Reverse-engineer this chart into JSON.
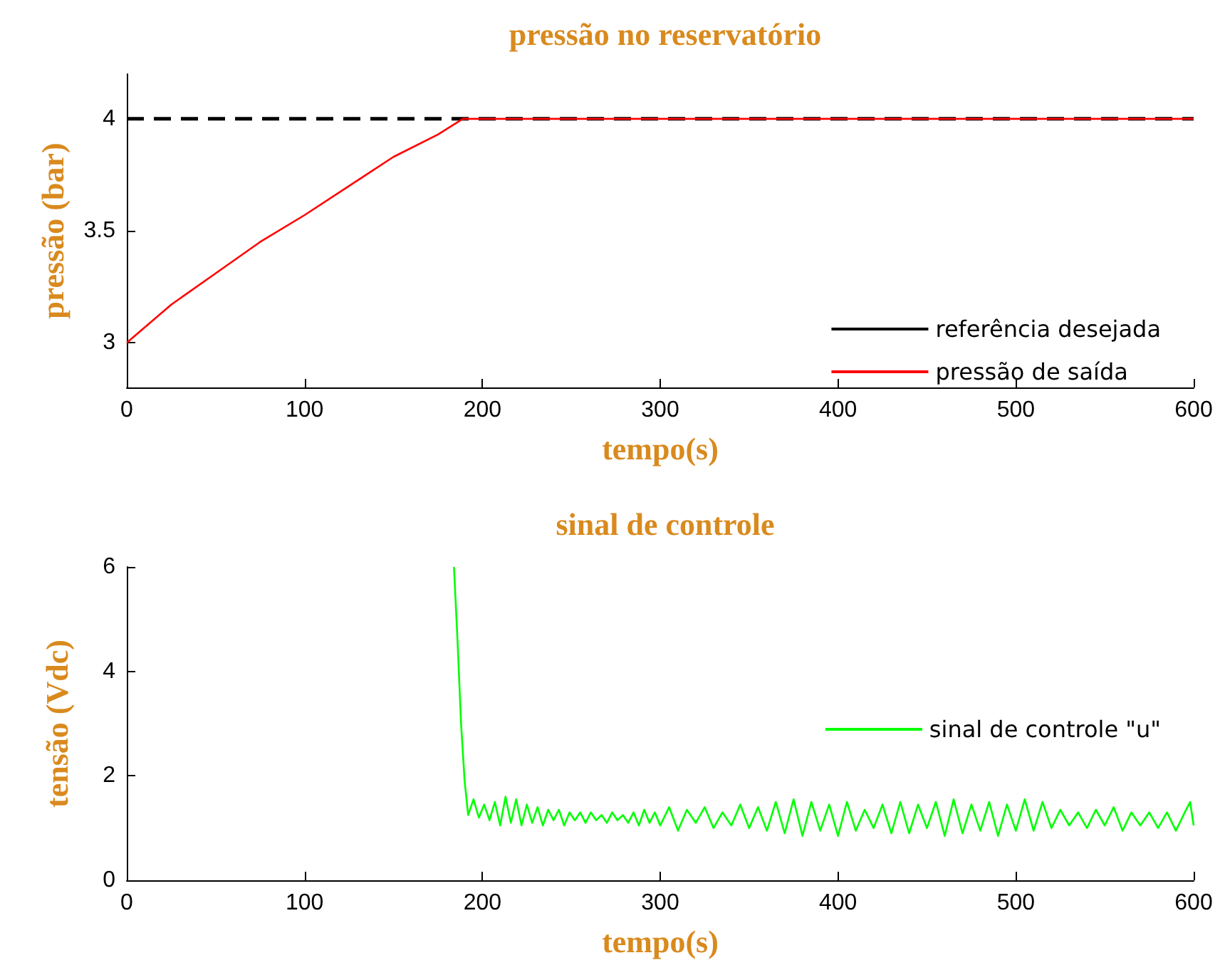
{
  "chart_data": [
    {
      "type": "line",
      "title": "pressão no reservatório",
      "xlabel": "tempo(s)",
      "ylabel": "pressão (bar)",
      "xlim": [
        0,
        600
      ],
      "xticks": [
        0,
        100,
        200,
        300,
        400,
        500,
        600
      ],
      "ylim": [
        2.8,
        4.2
      ],
      "yticks": [
        3,
        3.5,
        4
      ],
      "grid": false,
      "legend": "bottom right",
      "marker": "none",
      "series": [
        {
          "name": "referência desejada",
          "color": "#000000",
          "line_style": "dashed",
          "x": [
            0,
            600
          ],
          "values": [
            4,
            4
          ]
        },
        {
          "name": "pressão de saída",
          "color": "#ff0000",
          "line_style": "solid",
          "x": [
            0,
            25,
            50,
            75,
            100,
            125,
            150,
            175,
            189,
            200,
            300,
            400,
            500,
            600
          ],
          "values": [
            3,
            3.17,
            3.31,
            3.45,
            3.57,
            3.7,
            3.83,
            3.93,
            4,
            4,
            4,
            4,
            4,
            4
          ]
        }
      ]
    },
    {
      "type": "line",
      "title": "sinal de controle",
      "xlabel": "tempo(s)",
      "ylabel": "tensão (Vdc)",
      "xlim": [
        0,
        600
      ],
      "xticks": [
        0,
        100,
        200,
        300,
        400,
        500,
        600
      ],
      "ylim": [
        0,
        6
      ],
      "yticks": [
        0,
        2,
        4,
        6
      ],
      "grid": false,
      "legend": "right",
      "marker": "none",
      "series": [
        {
          "name": "sinal de controle \"u\"",
          "color": "#00ff00",
          "line_style": "solid",
          "x": [
            184,
            186,
            188,
            190,
            192,
            195,
            198,
            201,
            204,
            207,
            210,
            213,
            216,
            219,
            222,
            225,
            228,
            231,
            234,
            237,
            240,
            243,
            246,
            249,
            252,
            255,
            258,
            261,
            264,
            267,
            270,
            273,
            276,
            279,
            282,
            285,
            288,
            291,
            294,
            297,
            300,
            305,
            310,
            315,
            320,
            325,
            330,
            335,
            340,
            345,
            350,
            355,
            360,
            365,
            370,
            375,
            380,
            385,
            390,
            395,
            400,
            405,
            410,
            415,
            420,
            425,
            430,
            435,
            440,
            445,
            450,
            455,
            460,
            465,
            470,
            475,
            480,
            485,
            490,
            495,
            500,
            505,
            510,
            515,
            520,
            525,
            530,
            535,
            540,
            545,
            550,
            555,
            560,
            565,
            570,
            575,
            580,
            585,
            590,
            595,
            598,
            600
          ],
          "values": [
            6,
            4.6,
            3,
            1.9,
            1.25,
            1.55,
            1.2,
            1.45,
            1.15,
            1.5,
            1.05,
            1.6,
            1.1,
            1.55,
            1.05,
            1.45,
            1.1,
            1.4,
            1.05,
            1.35,
            1.15,
            1.35,
            1.05,
            1.3,
            1.15,
            1.3,
            1.1,
            1.3,
            1.15,
            1.25,
            1.1,
            1.3,
            1.15,
            1.25,
            1.1,
            1.3,
            1.05,
            1.35,
            1.1,
            1.3,
            1.05,
            1.4,
            0.95,
            1.35,
            1.1,
            1.4,
            1,
            1.3,
            1.05,
            1.45,
            1.0,
            1.4,
            0.95,
            1.5,
            0.9,
            1.55,
            0.85,
            1.5,
            0.95,
            1.45,
            0.85,
            1.5,
            0.95,
            1.35,
            1.0,
            1.45,
            0.9,
            1.5,
            0.9,
            1.45,
            1.0,
            1.5,
            0.85,
            1.55,
            0.9,
            1.45,
            0.95,
            1.5,
            0.85,
            1.45,
            0.95,
            1.55,
            0.95,
            1.5,
            1.0,
            1.35,
            1.05,
            1.3,
            1.0,
            1.35,
            1.05,
            1.4,
            0.95,
            1.3,
            1.05,
            1.3,
            1.0,
            1.3,
            0.95,
            1.3,
            1.5,
            1.05
          ]
        }
      ]
    }
  ]
}
